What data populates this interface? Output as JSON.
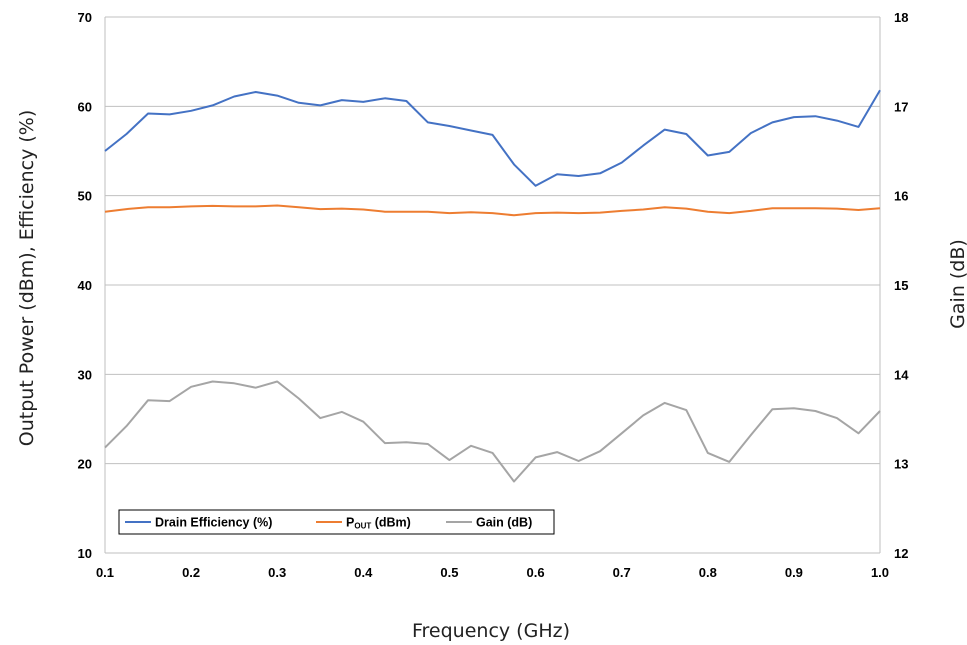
{
  "chart_data": {
    "type": "line",
    "xlabel": "Frequency (GHz)",
    "ylabel_left": "Output Power (dBm), Efficiency (%)",
    "ylabel_right": "Gain (dB)",
    "xlim": [
      0.1,
      1.0
    ],
    "ylim_left": [
      10,
      70
    ],
    "ylim_right": [
      12,
      18
    ],
    "x_ticks": [
      0.1,
      0.2,
      0.3,
      0.4,
      0.5,
      0.6,
      0.7,
      0.8,
      0.9,
      1.0
    ],
    "x_tick_labels": [
      "0.1",
      "0.2",
      "0.3",
      "0.4",
      "0.5",
      "0.6",
      "0.7",
      "0.8",
      "0.9",
      "1.0"
    ],
    "y_ticks_left": [
      10,
      20,
      30,
      40,
      50,
      60,
      70
    ],
    "y_tick_labels_left": [
      "10",
      "20",
      "30",
      "40",
      "50",
      "60",
      "70"
    ],
    "y_ticks_right": [
      12,
      13,
      14,
      15,
      16,
      17,
      18
    ],
    "y_tick_labels_right": [
      "12",
      "13",
      "14",
      "15",
      "16",
      "17",
      "18"
    ],
    "grid": "horizontal",
    "legend_position": "bottom-left",
    "x": [
      0.1,
      0.125,
      0.15,
      0.175,
      0.2,
      0.225,
      0.25,
      0.275,
      0.3,
      0.325,
      0.35,
      0.375,
      0.4,
      0.425,
      0.45,
      0.475,
      0.5,
      0.525,
      0.55,
      0.575,
      0.6,
      0.625,
      0.65,
      0.675,
      0.7,
      0.725,
      0.75,
      0.775,
      0.8,
      0.825,
      0.85,
      0.875,
      0.9,
      0.925,
      0.95,
      0.975,
      1.0
    ],
    "series": [
      {
        "name": "Drain Efficiency (%)",
        "axis": "left",
        "color": "#4472C4",
        "values": [
          55.0,
          56.9,
          59.2,
          59.1,
          59.5,
          60.1,
          61.1,
          61.6,
          61.2,
          60.4,
          60.1,
          60.7,
          60.5,
          60.9,
          60.6,
          58.2,
          57.8,
          57.3,
          56.8,
          53.5,
          51.1,
          52.4,
          52.2,
          52.5,
          53.7,
          55.6,
          57.4,
          56.9,
          54.5,
          54.9,
          57.0,
          58.2,
          58.8,
          58.9,
          58.4,
          57.7,
          61.8
        ]
      },
      {
        "name": "P_OUT (dBm)",
        "axis": "left",
        "color": "#ED7D31",
        "values": [
          48.2,
          48.5,
          48.7,
          48.7,
          48.8,
          48.85,
          48.8,
          48.8,
          48.9,
          48.7,
          48.5,
          48.55,
          48.45,
          48.2,
          48.2,
          48.2,
          48.05,
          48.15,
          48.05,
          47.8,
          48.05,
          48.1,
          48.05,
          48.1,
          48.3,
          48.45,
          48.7,
          48.55,
          48.2,
          48.05,
          48.3,
          48.6,
          48.6,
          48.6,
          48.55,
          48.4,
          48.6
        ]
      },
      {
        "name": "Gain (dB)",
        "axis": "right",
        "color": "#A5A5A5",
        "values": [
          13.18,
          13.42,
          13.71,
          13.7,
          13.86,
          13.92,
          13.9,
          13.85,
          13.92,
          13.73,
          13.51,
          13.58,
          13.47,
          13.23,
          13.24,
          13.22,
          13.04,
          13.2,
          13.12,
          12.8,
          13.07,
          13.13,
          13.03,
          13.14,
          13.34,
          13.54,
          13.68,
          13.6,
          13.12,
          13.02,
          13.32,
          13.61,
          13.62,
          13.59,
          13.51,
          13.34,
          13.59
        ]
      }
    ],
    "legend": [
      {
        "main": "Drain Efficiency (%)",
        "sub": "",
        "rest": "",
        "color": "#4472C4"
      },
      {
        "main": "P",
        "sub": "OUT",
        "rest": " (dBm)",
        "color": "#ED7D31"
      },
      {
        "main": "Gain (dB)",
        "sub": "",
        "rest": "",
        "color": "#A5A5A5"
      }
    ]
  },
  "colors": {
    "gridline": "#C0C0C0",
    "axis": "#BFBFBF",
    "efficiency": "#4472C4",
    "pout": "#ED7D31",
    "gain": "#A5A5A5"
  }
}
